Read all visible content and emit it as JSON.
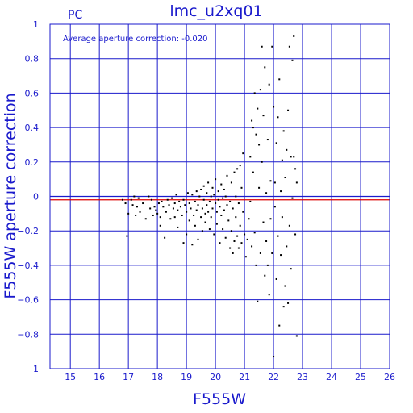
{
  "chart_data": {
    "type": "scatter",
    "title": "lmc_u2xq01",
    "panel_label": "PC",
    "xlabel": "F555W",
    "ylabel": "F555W aperture correction",
    "annotation": "Average aperture correction:  -0.020",
    "xlim": [
      14.3,
      26
    ],
    "ylim": [
      -1,
      1
    ],
    "xticks": [
      15,
      16,
      17,
      18,
      19,
      20,
      21,
      22,
      23,
      24,
      25,
      26
    ],
    "yticks": [
      -1,
      -0.8,
      -0.6,
      -0.4,
      -0.2,
      0,
      0.2,
      0.4,
      0.6,
      0.8,
      1
    ],
    "ytick_labels": [
      "−1",
      "−0.8",
      "−0.6",
      "−0.4",
      "−0.2",
      "0",
      "0.2",
      "0.4",
      "0.6",
      "0.8",
      "1"
    ],
    "grid": true,
    "reference_lines": [
      {
        "y": 0,
        "color": "#1a1acc"
      },
      {
        "y": -0.02,
        "color": "#dd0000"
      }
    ],
    "colors": {
      "axis": "#1a1acc",
      "grid": "#1a1acc",
      "points": "#000000",
      "mean_line": "#dd0000"
    },
    "series": [
      {
        "points": [
          [
            16.8,
            -0.02
          ],
          [
            16.9,
            -0.04
          ],
          [
            16.95,
            -0.23
          ],
          [
            17.0,
            -0.1
          ],
          [
            17.1,
            -0.02
          ],
          [
            17.15,
            -0.05
          ],
          [
            17.2,
            0.0
          ],
          [
            17.25,
            -0.11
          ],
          [
            17.3,
            -0.06
          ],
          [
            17.35,
            -0.01
          ],
          [
            17.4,
            -0.09
          ],
          [
            17.5,
            -0.04
          ],
          [
            17.6,
            -0.13
          ],
          [
            17.7,
            -0.0
          ],
          [
            17.75,
            -0.07
          ],
          [
            17.8,
            -0.02
          ],
          [
            17.85,
            -0.11
          ],
          [
            17.9,
            -0.06
          ],
          [
            17.95,
            -0.08
          ],
          [
            18.0,
            -0.1
          ],
          [
            18.05,
            -0.04
          ],
          [
            18.1,
            -0.12
          ],
          [
            18.1,
            -0.17
          ],
          [
            18.15,
            -0.03
          ],
          [
            18.2,
            -0.06
          ],
          [
            18.25,
            -0.24
          ],
          [
            18.3,
            -0.09
          ],
          [
            18.35,
            -0.02
          ],
          [
            18.4,
            -0.05
          ],
          [
            18.45,
            -0.13
          ],
          [
            18.5,
            -0.01
          ],
          [
            18.55,
            -0.07
          ],
          [
            18.6,
            -0.04
          ],
          [
            18.6,
            -0.12
          ],
          [
            18.65,
            0.01
          ],
          [
            18.7,
            -0.08
          ],
          [
            18.7,
            -0.18
          ],
          [
            18.75,
            -0.03
          ],
          [
            18.8,
            -0.06
          ],
          [
            18.85,
            -0.11
          ],
          [
            18.9,
            -0.02
          ],
          [
            18.9,
            -0.27
          ],
          [
            18.95,
            -0.05
          ],
          [
            19.0,
            -0.09
          ],
          [
            19.0,
            -0.22
          ],
          [
            19.05,
            0.02
          ],
          [
            19.1,
            -0.04
          ],
          [
            19.1,
            -0.14
          ],
          [
            19.15,
            -0.07
          ],
          [
            19.2,
            0.01
          ],
          [
            19.2,
            -0.28
          ],
          [
            19.25,
            -0.11
          ],
          [
            19.3,
            -0.03
          ],
          [
            19.3,
            -0.17
          ],
          [
            19.35,
            -0.08
          ],
          [
            19.35,
            0.03
          ],
          [
            19.4,
            -0.05
          ],
          [
            19.4,
            -0.25
          ],
          [
            19.45,
            0.0
          ],
          [
            19.5,
            -0.12
          ],
          [
            19.5,
            0.04
          ],
          [
            19.55,
            -0.07
          ],
          [
            19.55,
            -0.2
          ],
          [
            19.6,
            -0.02
          ],
          [
            19.6,
            0.06
          ],
          [
            19.65,
            -0.1
          ],
          [
            19.65,
            -0.15
          ],
          [
            19.7,
            0.02
          ],
          [
            19.7,
            -0.05
          ],
          [
            19.75,
            -0.09
          ],
          [
            19.75,
            0.08
          ],
          [
            19.8,
            -0.03
          ],
          [
            19.8,
            -0.19
          ],
          [
            19.85,
            0.0
          ],
          [
            19.85,
            -0.12
          ],
          [
            19.9,
            0.05
          ],
          [
            19.9,
            -0.07
          ],
          [
            19.95,
            -0.22
          ],
          [
            19.95,
            0.01
          ],
          [
            20.0,
            -0.04
          ],
          [
            20.0,
            0.1
          ],
          [
            20.05,
            -0.09
          ],
          [
            20.05,
            -0.16
          ],
          [
            20.1,
            0.03
          ],
          [
            20.1,
            -0.02
          ],
          [
            20.15,
            -0.27
          ],
          [
            20.15,
            -0.06
          ],
          [
            20.2,
            0.07
          ],
          [
            20.2,
            -0.11
          ],
          [
            20.25,
            -0.01
          ],
          [
            20.25,
            -0.19
          ],
          [
            20.3,
            0.04
          ],
          [
            20.3,
            -0.08
          ],
          [
            20.35,
            -0.24
          ],
          [
            20.35,
            0.0
          ],
          [
            20.4,
            -0.05
          ],
          [
            20.4,
            0.12
          ],
          [
            20.45,
            -0.14
          ],
          [
            20.5,
            -0.03
          ],
          [
            20.5,
            -0.3
          ],
          [
            20.55,
            0.08
          ],
          [
            20.55,
            -0.2
          ],
          [
            20.6,
            -0.07
          ],
          [
            20.6,
            -0.33
          ],
          [
            20.65,
            0.14
          ],
          [
            20.65,
            -0.26
          ],
          [
            20.7,
            0.0
          ],
          [
            20.7,
            -0.12
          ],
          [
            20.75,
            0.16
          ],
          [
            20.75,
            -0.23
          ],
          [
            20.8,
            -0.04
          ],
          [
            20.8,
            -0.3
          ],
          [
            20.85,
            0.18
          ],
          [
            20.85,
            -0.17
          ],
          [
            20.9,
            0.05
          ],
          [
            20.9,
            -0.27
          ],
          [
            20.95,
            -0.09
          ],
          [
            20.95,
            0.25
          ],
          [
            21.0,
            -0.22
          ],
          [
            21.05,
            -0.35
          ],
          [
            21.1,
            -0.25
          ],
          [
            21.15,
            -0.13
          ],
          [
            21.2,
            -0.03
          ],
          [
            21.2,
            0.23
          ],
          [
            21.25,
            0.44
          ],
          [
            21.25,
            -0.29
          ],
          [
            21.3,
            0.14
          ],
          [
            21.3,
            0.4
          ],
          [
            21.35,
            0.6
          ],
          [
            21.35,
            -0.21
          ],
          [
            21.4,
            0.36
          ],
          [
            21.4,
            -0.4
          ],
          [
            21.45,
            0.51
          ],
          [
            21.45,
            -0.61
          ],
          [
            21.5,
            0.3
          ],
          [
            21.5,
            0.05
          ],
          [
            21.55,
            0.62
          ],
          [
            21.55,
            -0.33
          ],
          [
            21.6,
            0.87
          ],
          [
            21.6,
            0.2
          ],
          [
            21.65,
            -0.15
          ],
          [
            21.65,
            0.47
          ],
          [
            21.7,
            0.75
          ],
          [
            21.7,
            -0.46
          ],
          [
            21.75,
            -0.26
          ],
          [
            21.75,
            0.02
          ],
          [
            21.8,
            0.33
          ],
          [
            21.8,
            -0.4
          ],
          [
            21.85,
            0.65
          ],
          [
            21.85,
            -0.57
          ],
          [
            21.9,
            0.09
          ],
          [
            21.9,
            -0.13
          ],
          [
            21.95,
            0.87
          ],
          [
            21.95,
            -0.33
          ],
          [
            22.0,
            -0.93
          ],
          [
            22.0,
            0.52
          ],
          [
            22.05,
            -0.06
          ],
          [
            22.05,
            0.08
          ],
          [
            22.1,
            0.31
          ],
          [
            22.1,
            -0.48
          ],
          [
            22.15,
            0.46
          ],
          [
            22.15,
            -0.23
          ],
          [
            22.2,
            -0.75
          ],
          [
            22.2,
            0.68
          ],
          [
            22.25,
            0.03
          ],
          [
            22.25,
            -0.34
          ],
          [
            22.3,
            -0.12
          ],
          [
            22.3,
            0.21
          ],
          [
            22.35,
            0.38
          ],
          [
            22.35,
            -0.64
          ],
          [
            22.4,
            -0.52
          ],
          [
            22.4,
            0.11
          ],
          [
            22.45,
            -0.29
          ],
          [
            22.45,
            0.27
          ],
          [
            22.5,
            -0.62
          ],
          [
            22.5,
            0.5
          ],
          [
            22.55,
            0.87
          ],
          [
            22.55,
            -0.17
          ],
          [
            22.6,
            0.23
          ],
          [
            22.6,
            -0.42
          ],
          [
            22.65,
            0.79
          ],
          [
            22.65,
            -0.01
          ],
          [
            22.7,
            0.93
          ],
          [
            22.7,
            0.23
          ],
          [
            22.75,
            0.16
          ],
          [
            22.75,
            -0.22
          ],
          [
            22.8,
            -0.81
          ],
          [
            22.8,
            0.08
          ]
        ]
      }
    ]
  }
}
